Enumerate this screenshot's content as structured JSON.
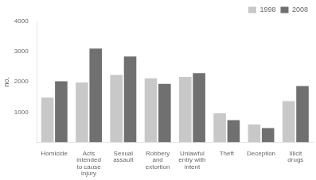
{
  "chart_data": {
    "type": "bar",
    "categories": [
      "Homicide",
      "Acts\nintended\nto cause\ninjury",
      "Sexual\nassault",
      "Robbery\nand\nextortion",
      "Unlawful\nentry with\nintent",
      "Theft",
      "Deception",
      "Illicit\ndrugs"
    ],
    "series": [
      {
        "name": "1998",
        "color": "#c8c8c8",
        "values": [
          1480,
          1980,
          2230,
          2120,
          2160,
          960,
          590,
          1360
        ]
      },
      {
        "name": "2008",
        "color": "#707070",
        "values": [
          2020,
          3100,
          2840,
          1930,
          2290,
          730,
          470,
          1860
        ]
      }
    ],
    "ylabel": "no.",
    "ylim": [
      0,
      4000
    ],
    "yticks": [
      {
        "value": 0,
        "label": ""
      },
      1000,
      2000,
      3000,
      4000
    ],
    "grid": false,
    "legend": "upper right"
  }
}
